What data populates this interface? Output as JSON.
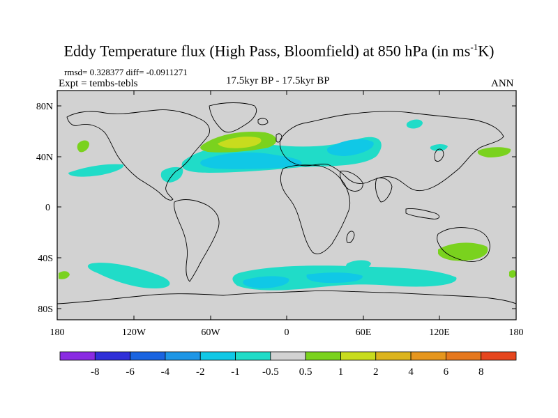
{
  "title": {
    "main": "Eddy Temperature flux (High Pass, Bloomfield) at 850 hPa (in ms",
    "sup": "-1",
    "unit_tail": "K)"
  },
  "stats": "rmsd= 0.328377 diff= -0.0911271",
  "experiment": "Expt = tembs-tebls",
  "period": "17.5kyr BP - 17.5kyr BP",
  "season": "ANN",
  "axes": {
    "lat_ticks": [
      "80N",
      "40N",
      "0",
      "40S",
      "80S"
    ],
    "lon_ticks": [
      "180",
      "120W",
      "60W",
      "0",
      "60E",
      "120E",
      "180"
    ]
  },
  "colorbar": {
    "labels": [
      "-8",
      "-6",
      "-4",
      "-2",
      "-1",
      "-0.5",
      "0.5",
      "1",
      "2",
      "4",
      "6",
      "8"
    ],
    "colors": [
      "#8a2be2",
      "#3030d8",
      "#1a64e0",
      "#1e96e6",
      "#10c8e6",
      "#20dcc8",
      "#d2d2d2",
      "#7ad21e",
      "#c8dc1e",
      "#dcb41e",
      "#e6961e",
      "#e6781e",
      "#e6461e"
    ]
  },
  "map_colors": {
    "background": "#d2d2d2",
    "negative_light": "#20dcc8",
    "negative_mid": "#10c8e6",
    "positive_light": "#7ad21e",
    "positive_mid": "#c8dc1e"
  }
}
